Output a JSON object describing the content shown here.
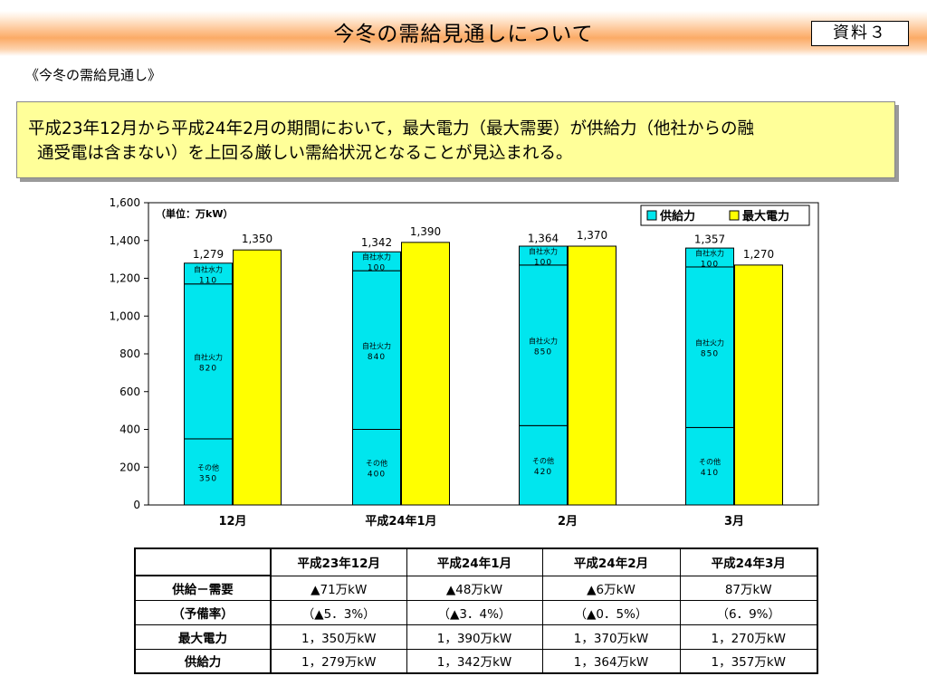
{
  "header": {
    "title": "今冬の需給見通しについて",
    "doc_label": "資料３"
  },
  "section_heading": "《今冬の需給見通し》",
  "summary": {
    "line1": "平成23年12月から平成24年2月の期間において，最大電力（最大需要）が供給力（他社からの融",
    "line2": "通受電は含まない）を上回る厳しい需給状況となることが見込まれる。"
  },
  "colors": {
    "supply": "#00e6ee",
    "demand": "#ffff00",
    "box": "#ffff99",
    "band": "#fbab66"
  },
  "chart_data": {
    "type": "bar",
    "unit_label": "（単位：万kW）",
    "categories": [
      "12月",
      "平成24年1月",
      "2月",
      "3月"
    ],
    "ylim": [
      0,
      1600
    ],
    "yticks": [
      "0",
      "200",
      "400",
      "600",
      "800",
      "1,000",
      "1,200",
      "1,400",
      "1,600"
    ],
    "legend": [
      "供給力",
      "最大電力"
    ],
    "supply_segments": [
      {
        "label": "その他",
        "values": [
          350,
          400,
          420,
          410
        ],
        "value_labels": [
          "350",
          "400",
          "420",
          "410"
        ]
      },
      {
        "label": "自社火力",
        "values": [
          820,
          840,
          850,
          850
        ],
        "value_labels": [
          "820",
          "840",
          "850",
          "850"
        ]
      },
      {
        "label": "自社水力",
        "values": [
          110,
          100,
          100,
          100
        ],
        "value_labels": [
          "110",
          "100",
          "100",
          "100"
        ]
      }
    ],
    "supply_totals": [
      1279,
      1342,
      1364,
      1357
    ],
    "supply_total_labels": [
      "1,279",
      "1,342",
      "1,364",
      "1,357"
    ],
    "demand": [
      1350,
      1390,
      1370,
      1270
    ],
    "demand_labels": [
      "1,350",
      "1,390",
      "1,370",
      "1,270"
    ]
  },
  "table": {
    "columns": [
      "平成23年12月",
      "平成24年1月",
      "平成24年2月",
      "平成24年3月"
    ],
    "rows": [
      {
        "label": "供給－需要",
        "cells": [
          "▲71万kW",
          "▲48万kW",
          "▲6万kW",
          "87万kW"
        ]
      },
      {
        "label": "（予備率）",
        "cells": [
          "（▲5．3%）",
          "（▲3．4%）",
          "（▲0．5%）",
          "（6．9%）"
        ]
      },
      {
        "label": "最大電力",
        "cells": [
          "1，350万kW",
          "1，390万kW",
          "1，370万kW",
          "1，270万kW"
        ]
      },
      {
        "label": "供給力",
        "cells": [
          "1，279万kW",
          "1，342万kW",
          "1，364万kW",
          "1，357万kW"
        ]
      }
    ]
  }
}
